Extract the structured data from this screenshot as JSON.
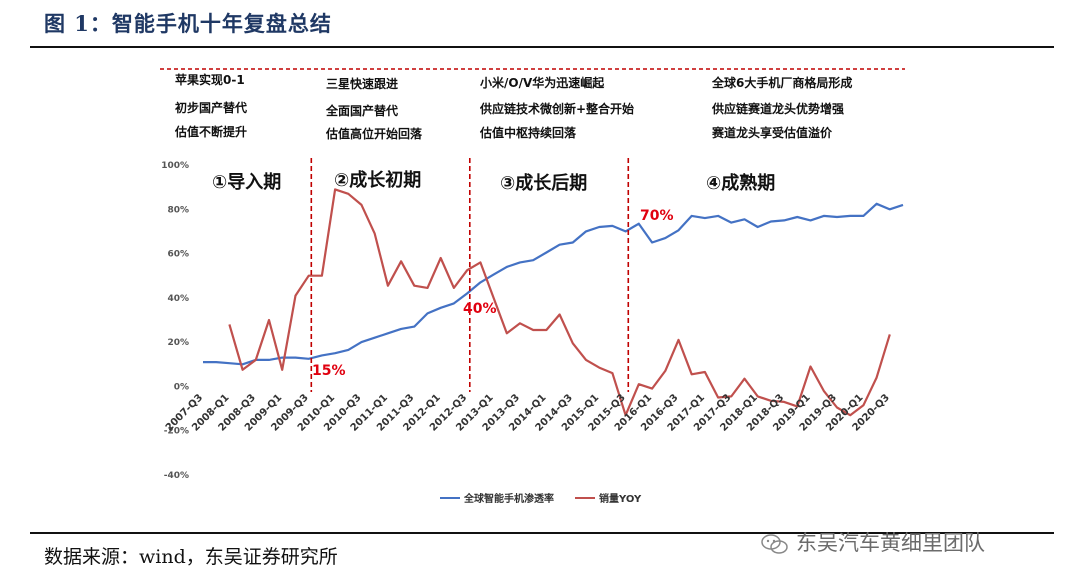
{
  "figure_title": "图 1：智能手机十年复盘总结",
  "source_note": "数据来源：wind，东吴证券研究所",
  "watermark": "东吴汽车黄细里团队",
  "annotations": [
    [
      "苹果实现0-1",
      "初步国产替代",
      "估值不断提升"
    ],
    [
      "三星快速跟进",
      "全面国产替代",
      "估值高位开始回落"
    ],
    [
      "小米/O/V华为迅速崛起",
      "供应链技术微创新+整合开始",
      "估值中枢持续回落"
    ],
    [
      "全球6大手机厂商格局形成",
      "供应链赛道龙头优势增强",
      "赛道龙头享受估值溢价"
    ]
  ],
  "phases": [
    "①导入期",
    "②成长初期",
    "③成长后期",
    "④成熟期"
  ],
  "callouts": [
    "15%",
    "40%",
    "70%"
  ],
  "colors": {
    "penetration": "#4472c4",
    "yoy": "#c0504d",
    "divider": "#c00000",
    "callout": "#e0000f"
  },
  "chart_data": {
    "type": "line",
    "x": [
      "2007-Q3",
      "2007-Q4",
      "2008-Q1",
      "2008-Q2",
      "2008-Q3",
      "2008-Q4",
      "2009-Q1",
      "2009-Q2",
      "2009-Q3",
      "2009-Q4",
      "2010-Q1",
      "2010-Q2",
      "2010-Q3",
      "2010-Q4",
      "2011-Q1",
      "2011-Q2",
      "2011-Q3",
      "2011-Q4",
      "2012-Q1",
      "2012-Q2",
      "2012-Q3",
      "2012-Q4",
      "2013-Q1",
      "2013-Q2",
      "2013-Q3",
      "2013-Q4",
      "2014-Q1",
      "2014-Q2",
      "2014-Q3",
      "2014-Q4",
      "2015-Q1",
      "2015-Q2",
      "2015-Q3",
      "2015-Q4",
      "2016-Q1",
      "2016-Q2",
      "2016-Q3",
      "2016-Q4",
      "2017-Q1",
      "2017-Q2",
      "2017-Q3",
      "2017-Q4",
      "2018-Q1",
      "2018-Q2",
      "2018-Q3",
      "2018-Q4",
      "2019-Q1",
      "2019-Q2",
      "2019-Q3",
      "2019-Q4",
      "2020-Q1",
      "2020-Q2",
      "2020-Q3",
      "2020-Q4"
    ],
    "x_tick_labels": [
      "2007-Q3",
      "2008-Q1",
      "2008-Q3",
      "2009-Q1",
      "2009-Q3",
      "2010-Q1",
      "2010-Q3",
      "2011-Q1",
      "2011-Q3",
      "2012-Q1",
      "2012-Q3",
      "2013-Q1",
      "2013-Q3",
      "2014-Q1",
      "2014-Q3",
      "2015-Q1",
      "2015-Q3",
      "2016-Q1",
      "2016-Q3",
      "2017-Q1",
      "2017-Q3",
      "2018-Q1",
      "2018-Q3",
      "2019-Q1",
      "2019-Q3",
      "2020-Q1",
      "2020-Q3"
    ],
    "series": [
      {
        "name": "全球智能手机渗透率",
        "values": [
          11,
          11,
          10.5,
          10,
          12,
          12,
          13,
          13,
          12.5,
          14,
          15,
          16.5,
          20,
          22,
          24,
          26,
          27,
          33,
          35.5,
          37.5,
          42,
          47,
          50.5,
          54,
          56,
          57,
          60.5,
          64,
          65,
          70,
          72,
          72.5,
          70,
          73.5,
          65,
          67,
          70.5,
          77,
          76,
          77,
          74,
          75.5,
          72,
          74.5,
          75,
          76.5,
          75,
          77,
          76.5,
          77,
          77,
          82.5,
          80,
          82
        ]
      },
      {
        "name": "销量YOY",
        "values": [
          null,
          null,
          28,
          7.5,
          12,
          30,
          7.5,
          41,
          50,
          50,
          89,
          87,
          82,
          69,
          45.5,
          56.5,
          45.5,
          44.5,
          58,
          44.5,
          52.5,
          56,
          40,
          24,
          28.5,
          25.5,
          25.5,
          32.5,
          19.5,
          12,
          8.5,
          6,
          -13,
          1,
          -1,
          7,
          21,
          5.5,
          6.5,
          -5,
          -4.5,
          3.5,
          -4.5,
          -6.5,
          -7,
          -9,
          9,
          -2,
          -9.5,
          -13,
          -8.5,
          4,
          23.5,
          null
        ]
      }
    ],
    "yticks": [
      "100%",
      "80%",
      "60%",
      "40%",
      "20%",
      "0%",
      "-20%",
      "-40%"
    ],
    "ylim": [
      -40,
      100
    ],
    "dividers_after": [
      "2009-Q3",
      "2012-Q3",
      "2015-Q3"
    ],
    "legend": "bottom"
  }
}
